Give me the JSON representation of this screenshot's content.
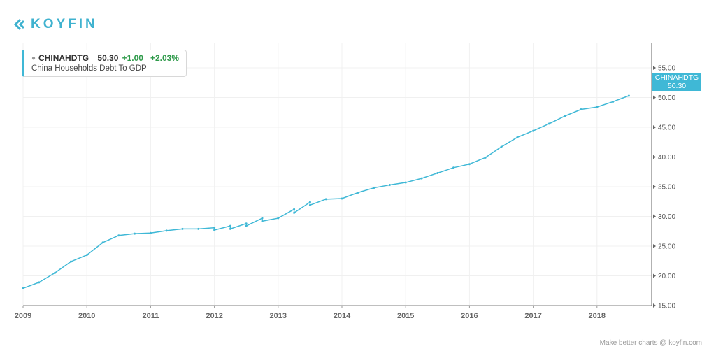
{
  "brand": "KOYFIN",
  "legend": {
    "symbol": "CHINAHDTG",
    "price": "50.30",
    "change": "+1.00",
    "change_pct": "+2.03%",
    "description": "China Households Debt To GDP"
  },
  "price_tag": {
    "symbol": "CHINAHDTG",
    "value": "50.30"
  },
  "footer": "Make better charts @ koyfin.com",
  "colors": {
    "line": "#3fb8d6",
    "accent": "#3fb2cf",
    "positive": "#2e9a4a"
  },
  "chart_data": {
    "type": "line",
    "title": "China Households Debt To GDP",
    "xlim": [
      2009,
      2018.85
    ],
    "ylim": [
      15,
      59
    ],
    "x_ticks": [
      "2009",
      "2010",
      "2011",
      "2012",
      "2013",
      "2014",
      "2015",
      "2016",
      "2017",
      "2018"
    ],
    "y_ticks": [
      "15.00",
      "20.00",
      "25.00",
      "30.00",
      "35.00",
      "40.00",
      "45.00",
      "50.00",
      "55.00"
    ],
    "grid": true,
    "series": [
      {
        "name": "CHINAHDTG",
        "points": [
          [
            2009,
            17.9
          ],
          [
            2009.25,
            18.9
          ],
          [
            2009.5,
            20.5
          ],
          [
            2009.75,
            22.4
          ],
          [
            2010,
            23.5
          ],
          [
            2010.25,
            25.6
          ],
          [
            2010.5,
            26.8
          ],
          [
            2010.75,
            27.1
          ],
          [
            2011,
            27.2
          ],
          [
            2011.25,
            27.6
          ],
          [
            2011.5,
            27.9
          ],
          [
            2011.75,
            27.9
          ],
          [
            2012,
            28.1
          ],
          [
            2012,
            27.7
          ],
          [
            2012.25,
            28.4
          ],
          [
            2012.25,
            27.9
          ],
          [
            2012.5,
            28.8
          ],
          [
            2012.5,
            28.4
          ],
          [
            2012.75,
            29.7
          ],
          [
            2012.75,
            29.2
          ],
          [
            2013,
            29.7
          ],
          [
            2013.25,
            31.2
          ],
          [
            2013.25,
            30.6
          ],
          [
            2013.5,
            32.4
          ],
          [
            2013.5,
            31.9
          ],
          [
            2013.75,
            32.9
          ],
          [
            2014,
            33.0
          ],
          [
            2014.25,
            34.0
          ],
          [
            2014.5,
            34.8
          ],
          [
            2014.75,
            35.3
          ],
          [
            2015,
            35.7
          ],
          [
            2015.25,
            36.4
          ],
          [
            2015.5,
            37.3
          ],
          [
            2015.75,
            38.2
          ],
          [
            2016,
            38.8
          ],
          [
            2016.25,
            39.9
          ],
          [
            2016.5,
            41.7
          ],
          [
            2016.75,
            43.3
          ],
          [
            2017,
            44.4
          ],
          [
            2017.25,
            45.6
          ],
          [
            2017.5,
            46.9
          ],
          [
            2017.75,
            48.0
          ],
          [
            2018,
            48.4
          ],
          [
            2018.25,
            49.3
          ],
          [
            2018.5,
            50.3
          ]
        ]
      }
    ]
  }
}
